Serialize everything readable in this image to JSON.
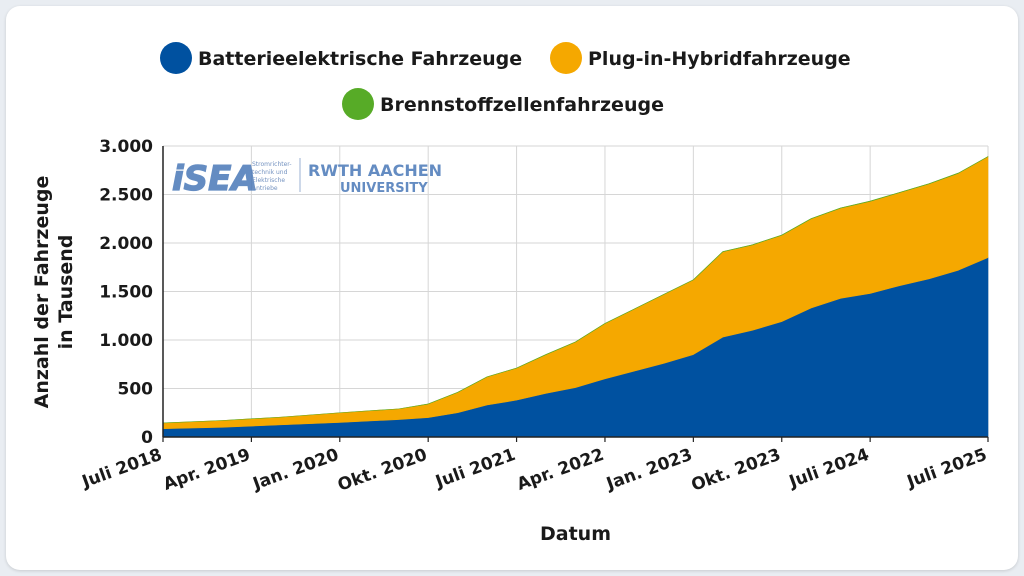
{
  "chart_data": {
    "type": "area",
    "stacked": true,
    "legend": {
      "position": "top",
      "entries": [
        {
          "name": "Batterieelektrische Fahrzeuge",
          "color": "#0051a0"
        },
        {
          "name": "Plug-in-Hybridfahrzeuge",
          "color": "#f5a800"
        },
        {
          "name": "Brennstoffzellenfahrzeuge",
          "color": "#57ab27"
        }
      ]
    },
    "xlabel": "Datum",
    "ylabel_lines": [
      "Anzahl der Fahrzeuge",
      "in Tausend"
    ],
    "ylim": [
      0,
      3000
    ],
    "yticks": [
      0,
      500,
      1000,
      1500,
      2000,
      2500,
      3000
    ],
    "ytick_labels": [
      "0",
      "500",
      "1.000",
      "1.500",
      "2.000",
      "2.500",
      "3.000"
    ],
    "xticks": [
      "Juli 2018",
      "Apr. 2019",
      "Jan. 2020",
      "Okt. 2020",
      "Juli 2021",
      "Apr. 2022",
      "Jan. 2023",
      "Okt. 2023",
      "Juli 2024",
      "Juli 2025"
    ],
    "xtick_dates": [
      "2018-07",
      "2019-04",
      "2020-01",
      "2020-10",
      "2021-07",
      "2022-04",
      "2023-01",
      "2023-10",
      "2024-07",
      "2025-07"
    ],
    "grid": true,
    "x": [
      "2018-07",
      "2019-01",
      "2019-07",
      "2020-01",
      "2020-07",
      "2020-10",
      "2021-01",
      "2021-04",
      "2021-07",
      "2021-10",
      "2022-01",
      "2022-04",
      "2022-07",
      "2022-10",
      "2023-01",
      "2023-04",
      "2023-07",
      "2023-10",
      "2024-01",
      "2024-04",
      "2024-07",
      "2024-10",
      "2025-01",
      "2025-04",
      "2025-07"
    ],
    "series": [
      {
        "name": "Batterieelektrische Fahrzeuge",
        "values": [
          85,
          100,
          125,
          150,
          180,
          200,
          250,
          330,
          380,
          450,
          510,
          600,
          680,
          760,
          850,
          1030,
          1100,
          1190,
          1330,
          1430,
          1480,
          1560,
          1630,
          1720,
          1850
        ]
      },
      {
        "name": "Plug-in-Hybridfahrzeuge",
        "values": [
          60,
          70,
          80,
          100,
          110,
          140,
          210,
          290,
          330,
          400,
          470,
          570,
          640,
          710,
          770,
          880,
          880,
          890,
          920,
          930,
          950,
          960,
          980,
          1000,
          1040
        ]
      },
      {
        "name": "Brennstoffzellenfahrzeuge",
        "values": [
          0,
          0,
          0,
          0,
          0,
          1,
          1,
          1,
          1,
          1,
          1,
          1,
          1,
          1,
          1,
          2,
          2,
          2,
          2,
          2,
          2,
          2,
          2,
          2,
          2
        ]
      }
    ]
  },
  "logos": {
    "isea_text": "iSEA",
    "isea_sub": [
      "Stromrichter-",
      "technik und",
      "Elektrische",
      "Antriebe"
    ],
    "rwth_text": "RWTH AACHEN",
    "rwth_sub": "UNIVERSITY"
  }
}
